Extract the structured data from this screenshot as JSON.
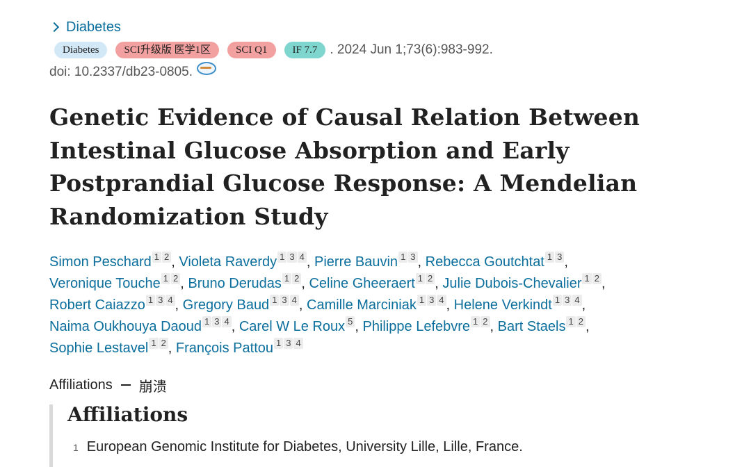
{
  "journal": {
    "name": "Diabetes"
  },
  "badges": {
    "journal": "Diabetes",
    "tier": "SCI升级版 医学1区",
    "quartile": "SCI Q1",
    "impact": "IF 7.7"
  },
  "citation": ". 2024 Jun 1;73(6):983-992.",
  "doi": "doi: 10.2337/db23-0805.",
  "doi_icon": "doi-link-icon",
  "title": "Genetic Evidence of Causal Relation Between Intestinal Glucose Absorption and Early Postprandial Glucose Response: A Mendelian Randomization Study",
  "authors": [
    {
      "name": "Simon Peschard",
      "affs": [
        "1",
        "2"
      ]
    },
    {
      "name": "Violeta Raverdy",
      "affs": [
        "1",
        "3",
        "4"
      ]
    },
    {
      "name": "Pierre Bauvin",
      "affs": [
        "1",
        "3"
      ]
    },
    {
      "name": "Rebecca Goutchtat",
      "affs": [
        "1",
        "3"
      ]
    },
    {
      "name": "Veronique Touche",
      "affs": [
        "1",
        "2"
      ]
    },
    {
      "name": "Bruno Derudas",
      "affs": [
        "1",
        "2"
      ]
    },
    {
      "name": "Celine Gheeraert",
      "affs": [
        "1",
        "2"
      ]
    },
    {
      "name": "Julie Dubois-Chevalier",
      "affs": [
        "1",
        "2"
      ]
    },
    {
      "name": "Robert Caiazzo",
      "affs": [
        "1",
        "3",
        "4"
      ]
    },
    {
      "name": "Gregory Baud",
      "affs": [
        "1",
        "3",
        "4"
      ]
    },
    {
      "name": "Camille Marciniak",
      "affs": [
        "1",
        "3",
        "4"
      ]
    },
    {
      "name": "Helene Verkindt",
      "affs": [
        "1",
        "3",
        "4"
      ]
    },
    {
      "name": "Naima Oukhouya Daoud",
      "affs": [
        "1",
        "3",
        "4"
      ]
    },
    {
      "name": "Carel W Le Roux",
      "affs": [
        "5"
      ]
    },
    {
      "name": "Philippe Lefebvre",
      "affs": [
        "1",
        "2"
      ]
    },
    {
      "name": "Bart Staels",
      "affs": [
        "1",
        "2"
      ]
    },
    {
      "name": "Sophie Lestavel",
      "affs": [
        "1",
        "2"
      ]
    },
    {
      "name": "François Pattou",
      "affs": [
        "1",
        "3",
        "4"
      ]
    }
  ],
  "affiliations_toggle": {
    "label": "Affiliations",
    "action": "崩溃"
  },
  "affiliations_section": {
    "heading": "Affiliations",
    "items": [
      {
        "num": "1",
        "text": "European Genomic Institute for Diabetes, University Lille, Lille, France."
      }
    ]
  },
  "colors": {
    "link": "#0b6e9c",
    "badge_journal": "#d3e8f7",
    "badge_red": "#f3a0a0",
    "badge_teal": "#7fd6cf"
  }
}
